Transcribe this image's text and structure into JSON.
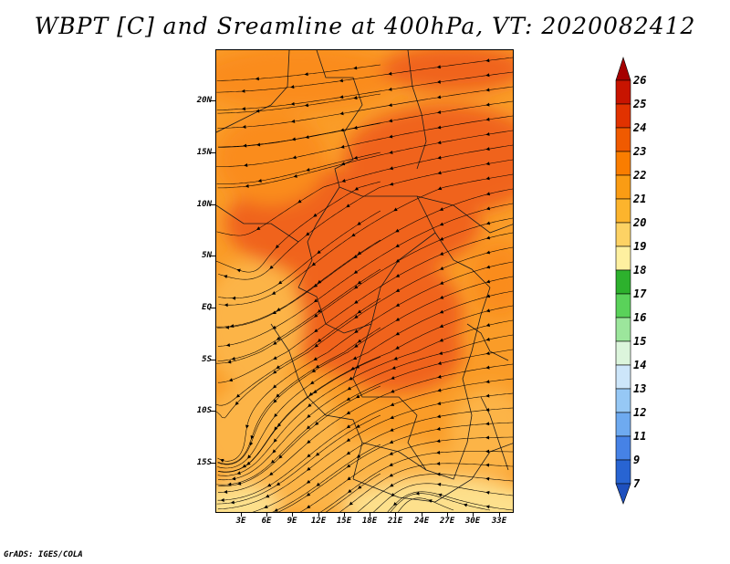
{
  "title": "WBPT [C] and Sreamline at 400hPa, VT: 2020082412",
  "variable": "WBPT [C]",
  "level": "400hPa",
  "valid_time": "2020082412",
  "credit": "GrADS: IGES/COLA",
  "map": {
    "lat_labels": [
      "20N",
      "15N",
      "10N",
      "5N",
      "EQ",
      "5S",
      "10S",
      "15S"
    ],
    "lon_labels": [
      "3E",
      "6E",
      "9E",
      "12E",
      "15E",
      "18E",
      "21E",
      "24E",
      "27E",
      "30E",
      "33E"
    ]
  },
  "colorbar": {
    "levels": [
      "26",
      "25",
      "24",
      "23",
      "22",
      "21",
      "20",
      "19",
      "18",
      "17",
      "16",
      "15",
      "14",
      "13",
      "12",
      "11",
      "9",
      "7"
    ],
    "colors": [
      "#a50000",
      "#c81400",
      "#e13200",
      "#f05a00",
      "#fa7d00",
      "#fa9c14",
      "#fcb42d",
      "#fdd264",
      "#fef0a0",
      "#2db12d",
      "#5ad25a",
      "#9ce69c",
      "#dcf5dc",
      "#cde6fa",
      "#96c8f5",
      "#6eaaf0",
      "#4682e6",
      "#2864d2",
      "#1e50be"
    ]
  },
  "colors": {
    "deep": "#f0641e",
    "mid": "#fa8c1e",
    "light": "#fcb447",
    "pale": "#fde08c"
  }
}
